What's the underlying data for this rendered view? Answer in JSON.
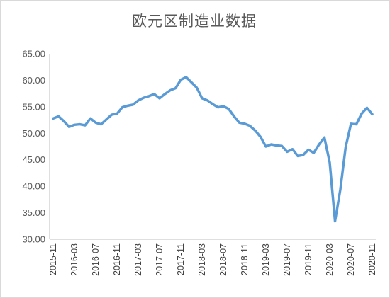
{
  "chart_data": {
    "type": "line",
    "title": "欧元区制造业数据",
    "ylim": [
      30,
      65
    ],
    "y_ticks": [
      "30.00",
      "35.00",
      "40.00",
      "45.00",
      "50.00",
      "55.00",
      "60.00",
      "65.00"
    ],
    "x_tick_labels": [
      "2015-11",
      "2016-03",
      "2016-07",
      "2016-11",
      "2017-03",
      "2017-07",
      "2017-11",
      "2018-03",
      "2018-07",
      "2018-11",
      "2019-03",
      "2019-07",
      "2019-11",
      "2020-03",
      "2020-07",
      "2020-11"
    ],
    "grid": false,
    "line_color": "#5b9bd5",
    "series": [
      {
        "x": [
          "2015-11",
          "2015-12",
          "2016-01",
          "2016-02",
          "2016-03",
          "2016-04",
          "2016-05",
          "2016-06",
          "2016-07",
          "2016-08",
          "2016-09",
          "2016-10",
          "2016-11",
          "2016-12",
          "2017-01",
          "2017-02",
          "2017-03",
          "2017-04",
          "2017-05",
          "2017-06",
          "2017-07",
          "2017-08",
          "2017-09",
          "2017-10",
          "2017-11",
          "2017-12",
          "2018-01",
          "2018-02",
          "2018-03",
          "2018-04",
          "2018-05",
          "2018-06",
          "2018-07",
          "2018-08",
          "2018-09",
          "2018-10",
          "2018-11",
          "2018-12",
          "2019-01",
          "2019-02",
          "2019-03",
          "2019-04",
          "2019-05",
          "2019-06",
          "2019-07",
          "2019-08",
          "2019-09",
          "2019-10",
          "2019-11",
          "2019-12",
          "2020-01",
          "2020-02",
          "2020-03",
          "2020-04",
          "2020-05",
          "2020-06",
          "2020-07",
          "2020-08",
          "2020-09",
          "2020-10",
          "2020-11"
        ],
        "values": [
          52.8,
          53.2,
          52.3,
          51.2,
          51.6,
          51.7,
          51.5,
          52.8,
          52.0,
          51.7,
          52.6,
          53.5,
          53.7,
          54.9,
          55.2,
          55.4,
          56.2,
          56.7,
          57.0,
          57.4,
          56.6,
          57.4,
          58.1,
          58.5,
          60.1,
          60.6,
          59.6,
          58.6,
          56.6,
          56.2,
          55.5,
          54.9,
          55.1,
          54.6,
          53.2,
          52.0,
          51.8,
          51.4,
          50.5,
          49.3,
          47.5,
          47.9,
          47.7,
          47.6,
          46.5,
          47.0,
          45.7,
          45.9,
          46.9,
          46.3,
          47.9,
          49.2,
          44.5,
          33.4,
          39.4,
          47.4,
          51.8,
          51.7,
          53.7,
          54.8,
          53.6
        ]
      }
    ]
  }
}
